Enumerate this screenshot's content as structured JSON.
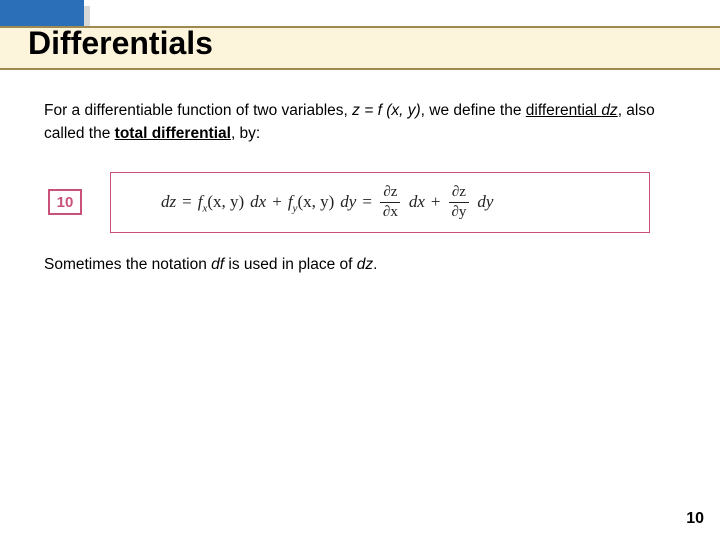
{
  "header": {
    "title": "Differentials",
    "accent_color": "#2a6fb8",
    "band_color": "#fdf4dc",
    "band_border_color": "#9e8a4e"
  },
  "body": {
    "intro_pre": "For a differentiable function of two variables, ",
    "intro_eq": "z = f (x, y)",
    "intro_post": ", we define the ",
    "term_differential": "differential ",
    "term_dz": "dz",
    "intro_also": ", also called the ",
    "term_total": "total differential",
    "intro_by": ", by:",
    "followup_pre": "Sometimes the notation ",
    "followup_df": "df",
    "followup_mid": " is used in place of ",
    "followup_dz": "dz",
    "followup_end": "."
  },
  "equation": {
    "badge": "10",
    "badge_color": "#c9517a",
    "lhs": "dz",
    "eq_sign": "=",
    "t1_f": "f",
    "t1_sub": "x",
    "t1_args": "(x, y)",
    "t1_d": "dx",
    "plus": "+",
    "t2_f": "f",
    "t2_sub": "y",
    "t2_args": "(x, y)",
    "t2_d": "dy",
    "frac1_num": "∂z",
    "frac1_den": "∂x",
    "frac1_d": "dx",
    "frac2_num": "∂z",
    "frac2_den": "∂y",
    "frac2_d": "dy"
  },
  "page_number": "10"
}
